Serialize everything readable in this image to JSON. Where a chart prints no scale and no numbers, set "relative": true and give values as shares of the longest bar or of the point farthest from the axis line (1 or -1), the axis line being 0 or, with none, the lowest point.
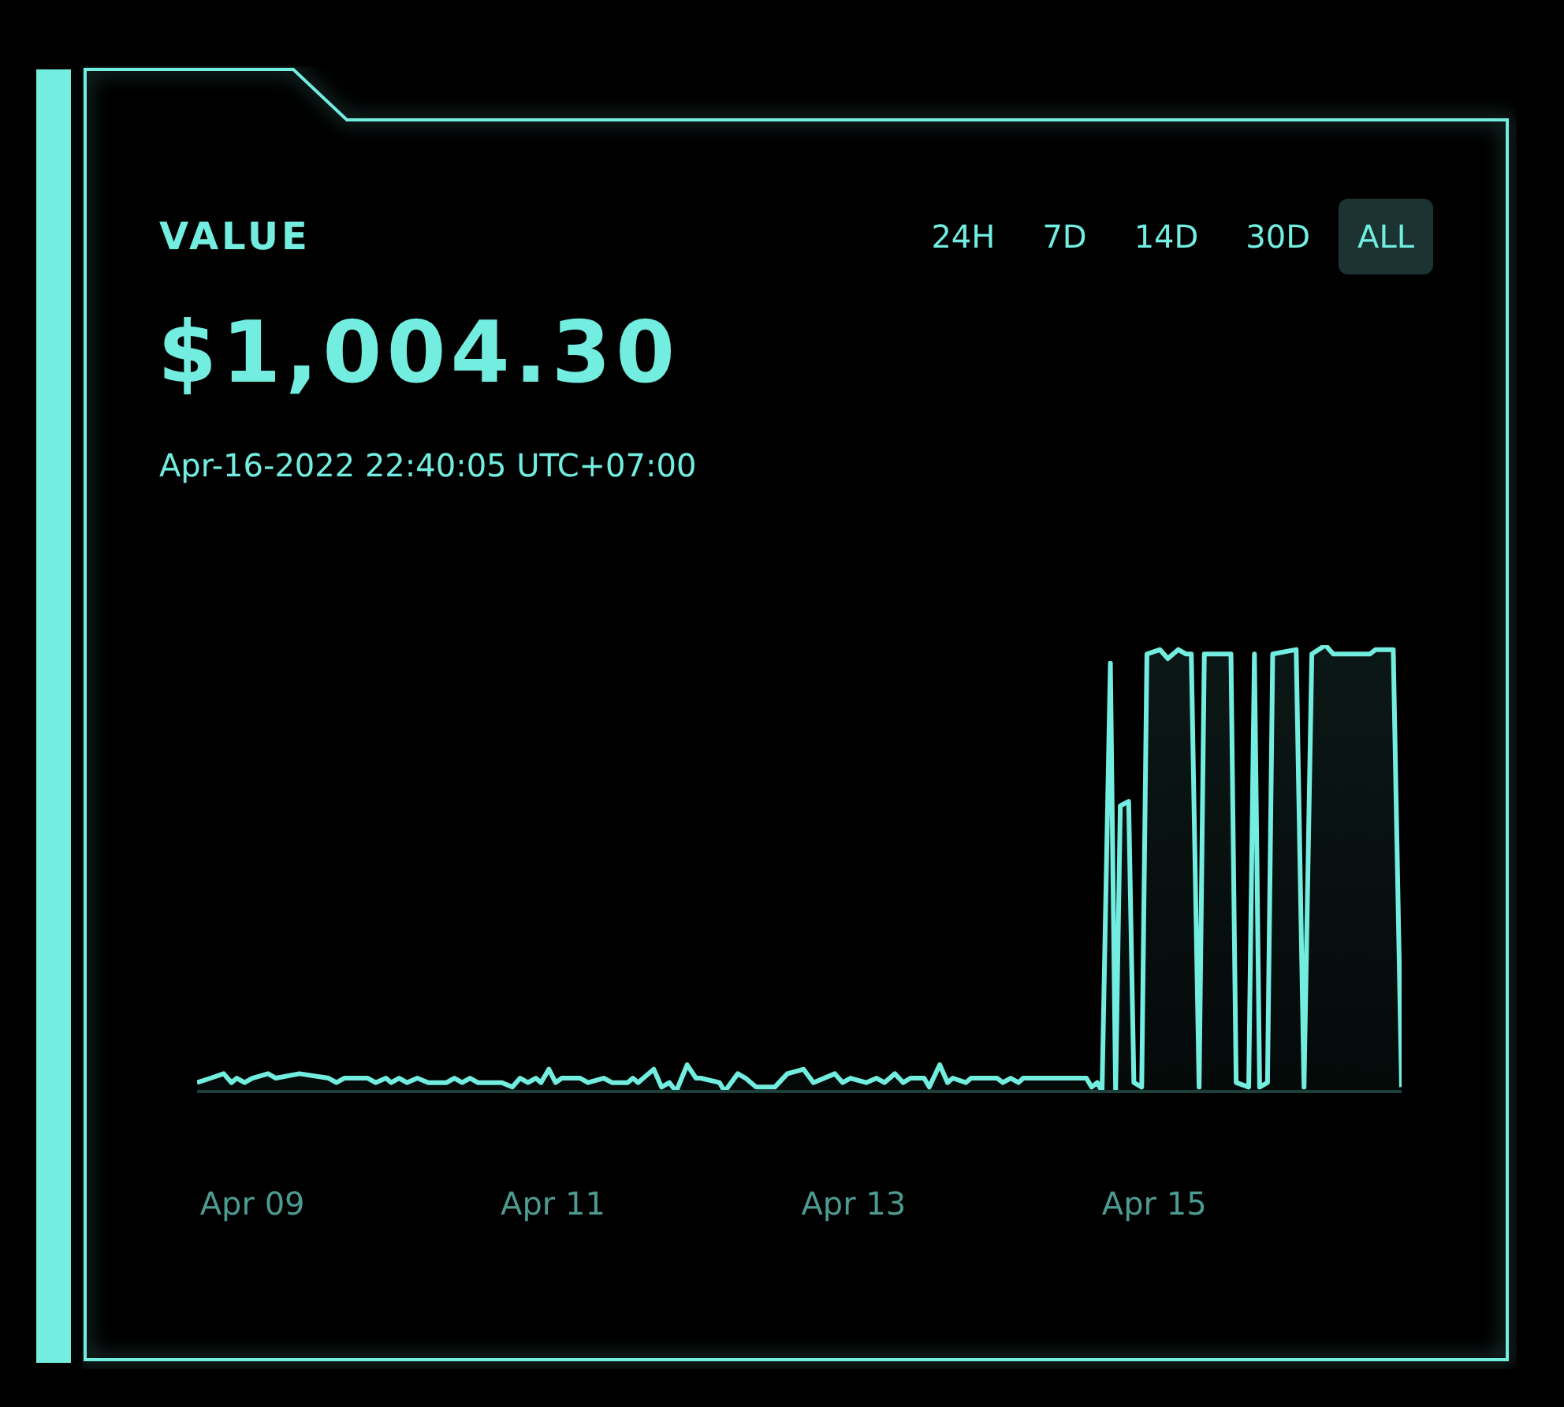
{
  "chart_data": {
    "type": "area",
    "title": "VALUE",
    "subtitle": "$1,004.30",
    "annotations": [
      "Apr-16-2022 22:40:05 UTC+07:00",
      "24H",
      "7D",
      "14D",
      "30D",
      "ALL"
    ],
    "relative": true,
    "xlim": [
      "2022-04-08T15:10",
      "2022-04-16T15:30"
    ],
    "xticks": [
      {
        "value": "2022-04-09",
        "label": "Apr 09"
      },
      {
        "value": "2022-04-11",
        "label": "Apr 11"
      },
      {
        "value": "2022-04-13",
        "label": "Apr 13"
      },
      {
        "value": "2022-04-15",
        "label": "Apr 15"
      }
    ],
    "x": [
      "2022-04-08T15:10",
      "2022-04-08T17:20",
      "2022-04-08T19:25",
      "2022-04-08T20:40",
      "2022-04-08T21:30",
      "2022-04-08T22:45",
      "2022-04-09T00:00",
      "2022-04-09T02:30",
      "2022-04-09T03:45",
      "2022-04-09T07:30",
      "2022-04-09T12:10",
      "2022-04-09T13:25",
      "2022-04-09T14:40",
      "2022-04-09T18:25",
      "2022-04-09T19:40",
      "2022-04-09T21:20",
      "2022-04-09T22:10",
      "2022-04-09T23:25",
      "2022-04-10T00:40",
      "2022-04-10T02:20",
      "2022-04-10T04:05",
      "2022-04-10T07:00",
      "2022-04-10T08:15",
      "2022-04-10T09:30",
      "2022-04-10T10:45",
      "2022-04-10T12:00",
      "2022-04-10T15:50",
      "2022-04-10T17:30",
      "2022-04-10T18:45",
      "2022-04-10T20:00",
      "2022-04-10T21:15",
      "2022-04-10T22:05",
      "2022-04-10T23:20",
      "2022-04-11T00:25",
      "2022-04-11T01:25",
      "2022-04-11T04:20",
      "2022-04-11T05:35",
      "2022-04-11T08:05",
      "2022-04-11T09:25",
      "2022-04-11T11:55",
      "2022-04-11T12:45",
      "2022-04-11T13:35",
      "2022-04-11T16:05",
      "2022-04-11T17:20",
      "2022-04-11T18:35",
      "2022-04-11T19:40",
      "2022-04-11T21:25",
      "2022-04-11T22:50",
      "2022-04-11T23:35",
      "2022-04-12T02:35",
      "2022-04-12T03:25",
      "2022-04-12T05:30",
      "2022-04-12T06:45",
      "2022-04-12T08:25",
      "2022-04-12T11:25",
      "2022-04-12T13:25",
      "2022-04-12T16:00",
      "2022-04-12T17:35",
      "2022-04-12T21:00",
      "2022-04-12T22:15",
      "2022-04-12T23:30",
      "2022-04-13T02:00",
      "2022-04-13T03:40",
      "2022-04-13T04:55",
      "2022-04-13T06:35",
      "2022-04-13T07:55",
      "2022-04-13T09:05",
      "2022-04-13T11:15",
      "2022-04-13T12:05",
      "2022-04-13T13:45",
      "2022-04-13T15:00",
      "2022-04-13T15:50",
      "2022-04-13T17:55",
      "2022-04-13T18:45",
      "2022-04-13T22:55",
      "2022-04-13T23:50",
      "2022-04-14T01:05",
      "2022-04-14T02:20",
      "2022-04-14T03:05",
      "2022-04-14T13:10",
      "2022-04-14T14:00",
      "2022-04-14T14:55",
      "2022-04-14T15:40",
      "2022-04-14T17:00",
      "2022-04-14T17:50",
      "2022-04-14T18:35",
      "2022-04-14T19:55",
      "2022-04-14T20:45",
      "2022-04-14T22:00",
      "2022-04-14T22:50",
      "2022-04-15T00:55",
      "2022-04-15T02:10",
      "2022-04-15T03:50",
      "2022-04-15T05:05",
      "2022-04-15T05:55",
      "2022-04-15T07:10",
      "2022-04-15T08:00",
      "2022-04-15T11:00",
      "2022-04-15T12:15",
      "2022-04-15T13:05",
      "2022-04-15T15:05",
      "2022-04-15T16:00",
      "2022-04-15T16:50",
      "2022-04-15T18:05",
      "2022-04-15T18:55",
      "2022-04-15T22:40",
      "2022-04-15T23:55",
      "2022-04-16T01:10",
      "2022-04-16T03:20",
      "2022-04-16T04:35",
      "2022-04-16T09:35",
      "2022-04-16T10:25",
      "2022-04-16T11:20",
      "2022-04-16T14:10",
      "2022-04-16T15:30"
    ],
    "series": [
      {
        "color": "#72ede0",
        "values": [
          0.02,
          0.03,
          0.04,
          0.02,
          0.03,
          0.02,
          0.03,
          0.04,
          0.03,
          0.04,
          0.03,
          0.02,
          0.03,
          0.03,
          0.02,
          0.03,
          0.02,
          0.03,
          0.02,
          0.03,
          0.02,
          0.02,
          0.03,
          0.02,
          0.03,
          0.02,
          0.02,
          0.01,
          0.03,
          0.02,
          0.03,
          0.02,
          0.05,
          0.02,
          0.03,
          0.03,
          0.02,
          0.03,
          0.02,
          0.02,
          0.03,
          0.02,
          0.05,
          0.01,
          0.02,
          0.0,
          0.06,
          0.03,
          0.03,
          0.02,
          0.0,
          0.04,
          0.03,
          0.01,
          0.01,
          0.04,
          0.05,
          0.02,
          0.04,
          0.02,
          0.03,
          0.02,
          0.03,
          0.02,
          0.04,
          0.02,
          0.03,
          0.03,
          0.01,
          0.06,
          0.02,
          0.03,
          0.02,
          0.03,
          0.03,
          0.02,
          0.03,
          0.02,
          0.03,
          0.03,
          0.01,
          0.02,
          0.0,
          0.96,
          0.0,
          0.64,
          0.65,
          0.02,
          0.01,
          0.98,
          0.99,
          0.97,
          0.99,
          0.98,
          0.98,
          0.01,
          0.98,
          0.98,
          0.98,
          0.02,
          0.01,
          0.98,
          0.01,
          0.02,
          0.98,
          0.99,
          0.01,
          0.98,
          1.0,
          0.98,
          0.98,
          0.98,
          0.99,
          0.99,
          0.01
        ]
      }
    ]
  }
}
